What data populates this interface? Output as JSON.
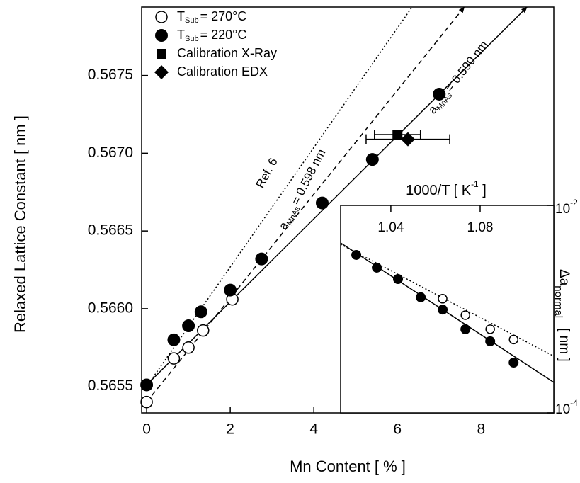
{
  "chart_data": [
    {
      "type": "scatter",
      "xlabel": "Mn Content [ % ]",
      "ylabel": "Relaxed Lattice Constant [ nm ]",
      "xlim": [
        -0.12,
        9.74
      ],
      "xticks": [
        0,
        2,
        4,
        6,
        8
      ],
      "ylim": [
        0.56533,
        0.56794
      ],
      "yticks": [
        0.5655,
        {
          "value": 0.566,
          "label": "0.5660"
        },
        0.5665,
        {
          "value": 0.567,
          "label": "0.5670"
        },
        0.5675
      ],
      "series": [
        {
          "name": "T",
          "name_sub": "Sub",
          "name_suffix": "= 270°C",
          "marker": "open-circle",
          "color": "#000000",
          "x": [
            0,
            0.65,
            1.0,
            1.35,
            2.05
          ],
          "values": [
            0.5654,
            0.56568,
            0.56575,
            0.56586,
            0.56606
          ]
        },
        {
          "name": "T",
          "name_sub": "Sub",
          "name_suffix": "= 220°C",
          "marker": "filled-circle",
          "color": "#000000",
          "x": [
            0,
            0.65,
            1.0,
            1.3,
            2.0,
            2.75,
            4.2,
            5.4,
            7.0
          ],
          "values": [
            0.56551,
            0.5658,
            0.56589,
            0.56598,
            0.56612,
            0.56632,
            0.56668,
            0.56696,
            0.56738
          ]
        },
        {
          "name": "Calibration X-Ray",
          "marker": "square",
          "color": "#000000",
          "x": [
            6.0
          ],
          "xerr": [
            0.55
          ],
          "values": [
            0.56712
          ]
        },
        {
          "name": "Calibration EDX",
          "marker": "diamond",
          "color": "#000000",
          "x": [
            6.25
          ],
          "xerr": [
            1.0
          ],
          "values": [
            0.56709
          ]
        }
      ],
      "fits": [
        {
          "style": "dotted",
          "arrow": false,
          "x": [
            0,
            6.35
          ],
          "values": [
            0.5655,
            0.56794
          ]
        },
        {
          "style": "dashed",
          "arrow": true,
          "x": [
            0,
            7.6
          ],
          "values": [
            0.5654,
            0.56794
          ]
        },
        {
          "style": "solid",
          "arrow": true,
          "x": [
            0,
            9.1
          ],
          "values": [
            0.56551,
            0.56794
          ]
        }
      ],
      "annotations": [
        {
          "text": "Ref. 6"
        },
        {
          "text": "a",
          "sub": "MnAs",
          "suffix": "= 0.598 nm"
        },
        {
          "text": "a",
          "sub": "MnAs",
          "suffix": "= 0.590 nm"
        }
      ]
    },
    {
      "type": "scatter",
      "xlabel": "1000/T  [ K",
      "xlabel_sup": "-1",
      "xlabel_suffix": " ]",
      "ylabel": "Δa",
      "ylabel_sub": "normal",
      "ylabel_suffix": "[ nm ]",
      "xlim": [
        1.0175,
        1.113
      ],
      "xticks": [
        1.04,
        1.08
      ],
      "ylim": [
        0.0001,
        0.01
      ],
      "ylog": true,
      "yticks": [
        {
          "value": 0.01,
          "label": "10",
          "sup": "-2"
        },
        {
          "value": 0.0001,
          "label": "10",
          "sup": "-4"
        }
      ],
      "series": [
        {
          "marker": "filled-circle",
          "color": "#000000",
          "x": [
            1.0245,
            1.0337,
            1.0432,
            1.0534,
            1.0632,
            1.0734,
            1.0845,
            1.095
          ],
          "values": [
            0.00333,
            0.00251,
            0.00195,
            0.0013,
            0.00099,
            0.00064,
            0.00049,
            0.000305
          ]
        },
        {
          "marker": "open-circle",
          "color": "#000000",
          "x": [
            1.0632,
            1.0734,
            1.0845,
            1.095
          ],
          "values": [
            0.00126,
            0.000875,
            0.00064,
            0.00051
          ]
        }
      ],
      "fits": [
        {
          "style": "solid",
          "arrow": false,
          "x": [
            1.0175,
            1.113
          ],
          "values": [
            0.00435,
            0.000197
          ]
        },
        {
          "style": "dotted",
          "arrow": false,
          "x": [
            1.0175,
            1.113
          ],
          "values": [
            0.00422,
            0.000352
          ]
        }
      ]
    }
  ]
}
